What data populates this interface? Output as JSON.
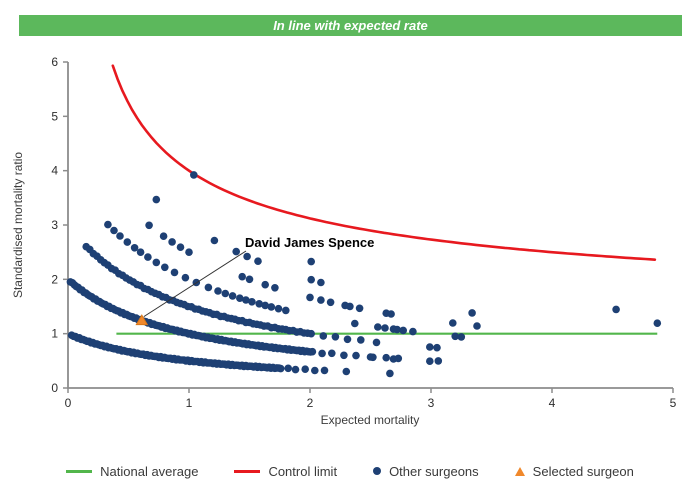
{
  "banner": {
    "text": "In line with expected rate",
    "bg": "#5cb85c",
    "fg": "#ffffff"
  },
  "chart_data": {
    "type": "scatter",
    "title": "",
    "xlabel": "Expected mortality",
    "ylabel": "Standardised mortality ratio",
    "xlim": [
      0,
      5
    ],
    "ylim": [
      0,
      6
    ],
    "x_ticks": [
      0,
      1,
      2,
      3,
      4,
      5
    ],
    "y_ticks": [
      0,
      1,
      2,
      3,
      4,
      5,
      6
    ],
    "grid": "off",
    "legend_position": "bottom",
    "bands_note": "Blue points (other surgeons) lie on hyperbolic bands of constant observed deaths n; y = n / (1 + x). Dense ranges are expanded with the given step; sparse/isolated points listed explicitly.",
    "point_color": "#1e4074",
    "bands": [
      {
        "n": 1,
        "dense_from": 0.03,
        "dense_to": 1.76,
        "dense_step": 0.016,
        "sparse_x": [
          1.82,
          1.88,
          1.96,
          2.04,
          2.12,
          2.3,
          2.66
        ]
      },
      {
        "n": 2,
        "dense_from": 0.02,
        "dense_to": 2.02,
        "dense_step": 0.016,
        "sparse_x": [
          2.1,
          2.18,
          2.28,
          2.38,
          2.5,
          2.52,
          2.63,
          2.69,
          2.73,
          2.99,
          3.06
        ]
      },
      {
        "n": 3,
        "dense_from": 0.15,
        "dense_to": 2.02,
        "dense_step": 0.03,
        "sparse_x": [
          2.11,
          2.21,
          2.31,
          2.42,
          2.55,
          2.99,
          3.05
        ]
      },
      {
        "n": 4,
        "x": [
          0.33,
          0.38,
          0.43,
          0.49,
          0.55,
          0.6,
          0.66,
          0.73,
          0.8,
          0.88,
          0.97,
          1.06,
          1.16,
          1.24,
          1.3,
          1.36,
          1.42,
          1.47,
          1.52,
          1.58,
          1.63,
          1.68,
          1.74,
          1.8,
          2.37,
          2.56,
          2.62,
          2.69,
          2.72,
          2.77,
          2.85,
          3.2,
          3.25
        ]
      },
      {
        "n": 5,
        "x": [
          0.67,
          0.79,
          0.86,
          0.93,
          1.0,
          1.44,
          1.5,
          1.63,
          1.71,
          2.0,
          2.09,
          2.17,
          2.29,
          2.33,
          2.41,
          2.63,
          2.67,
          3.18,
          3.38
        ]
      },
      {
        "n": 6,
        "x": [
          0.73,
          1.21,
          1.39,
          1.48,
          1.57,
          2.01,
          2.09,
          3.34
        ]
      },
      {
        "n": 7,
        "x": [
          2.01,
          4.87
        ]
      },
      {
        "n": 8,
        "x": [
          1.04,
          4.53
        ]
      }
    ],
    "national_average": {
      "label": "National average",
      "y": 1,
      "x_from": 0.4,
      "x_to": 4.87,
      "color": "#52b64b"
    },
    "control_limit": {
      "label": "Control limit",
      "formula": "y = 1 + 3 / sqrt(x)",
      "a": 1,
      "b": 3,
      "x_from": 0.37,
      "x_to": 4.87,
      "color": "#e7191f"
    },
    "selected_surgeon": {
      "name": "David James Spence",
      "x": 0.61,
      "y": 1.24,
      "color": "#f0882b"
    }
  },
  "legend": {
    "items": [
      {
        "label": "National average",
        "swatch": "green-line",
        "color": "#52b64b"
      },
      {
        "label": "Control limit",
        "swatch": "red-line",
        "color": "#e7191f"
      },
      {
        "label": "Other surgeons",
        "swatch": "blue-dot",
        "color": "#1e4074"
      },
      {
        "label": "Selected surgeon",
        "swatch": "orange-triangle",
        "color": "#f0882b"
      }
    ]
  }
}
